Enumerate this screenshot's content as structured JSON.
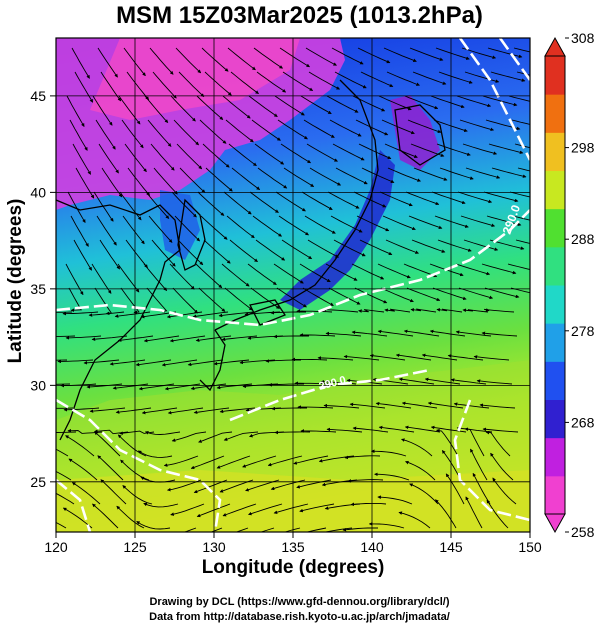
{
  "title": "MSM 15Z03Mar2025 (1013.2hPa)",
  "xlabel": "Longitude (degrees)",
  "ylabel": "Latitude  (degrees)",
  "credit_line1": "Drawing by DCL (https://www.gfd-dennou.org/library/dcl/)",
  "credit_line2": "Data from http://database.rish.kyoto-u.ac.jp/arch/jmadata/",
  "map": {
    "lon_range": [
      120,
      150
    ],
    "lat_range": [
      22.4,
      48
    ],
    "x_ticks": [
      120,
      125,
      130,
      135,
      140,
      145,
      150
    ],
    "y_ticks": [
      25,
      30,
      35,
      40,
      45
    ],
    "x_tick_labels": [
      "120",
      "125",
      "130",
      "135",
      "140",
      "145",
      "150"
    ],
    "y_tick_labels": [
      "25",
      "30",
      "35",
      "40",
      "45"
    ],
    "contour_labels": [
      "290.0",
      "280.0",
      "270.0"
    ],
    "field": "temperature (K) at 1013.2hPa with streamlines",
    "grid": true
  },
  "colorbar": {
    "range": [
      258,
      308
    ],
    "tick_labels": [
      "258",
      "268",
      "278",
      "288",
      "298",
      "308"
    ],
    "colors": [
      "#f040d0",
      "#c020e0",
      "#3020d0",
      "#2050f0",
      "#20a0e8",
      "#20d8c8",
      "#30e080",
      "#50e030",
      "#c8e820",
      "#f0c020",
      "#f07010",
      "#e03020"
    ]
  }
}
